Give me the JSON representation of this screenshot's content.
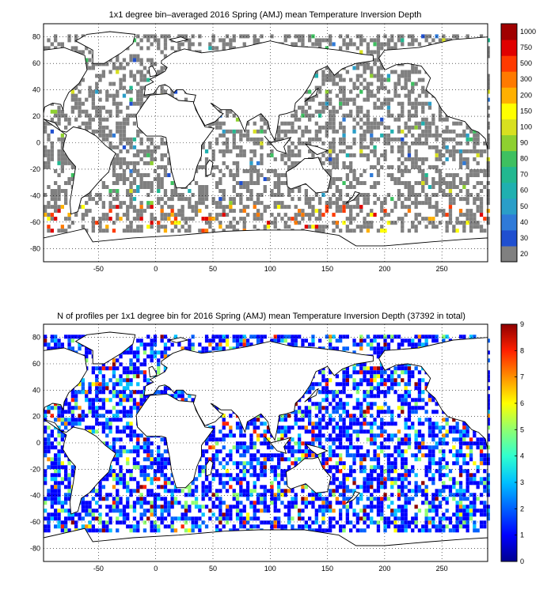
{
  "chart_data": [
    {
      "type": "heatmap",
      "title": "1x1 degree bin–averaged 2016 Spring (AMJ) mean Temperature Inversion Depth",
      "x_ticks": [
        -50,
        0,
        50,
        100,
        150,
        200,
        250
      ],
      "y_ticks": [
        80,
        60,
        40,
        20,
        0,
        -20,
        -40,
        -60,
        -80
      ],
      "xlim": [
        -98,
        290
      ],
      "ylim": [
        -90,
        90
      ],
      "colorbar": {
        "levels": [
          20,
          30,
          40,
          50,
          60,
          70,
          80,
          90,
          100,
          150,
          200,
          300,
          500,
          750,
          1000
        ],
        "colors": [
          "#808080",
          "#1f4fd0",
          "#2f7ad8",
          "#2a9ec8",
          "#1fb0b0",
          "#22b890",
          "#3ec060",
          "#8ed030",
          "#d8e020",
          "#ffff00",
          "#ffb000",
          "#ff7a00",
          "#ff3a00",
          "#e00000",
          "#a00000"
        ]
      }
    },
    {
      "type": "heatmap",
      "title": "N of profiles per 1x1 degree bin for 2016 Spring (AMJ) mean Temperature Inversion Depth  (37392 in total)",
      "x_ticks": [
        -50,
        0,
        50,
        100,
        150,
        200,
        250
      ],
      "y_ticks": [
        80,
        60,
        40,
        20,
        0,
        -20,
        -40,
        -60,
        -80
      ],
      "xlim": [
        -98,
        290
      ],
      "ylim": [
        -90,
        90
      ],
      "total_profiles": 37392,
      "colorbar": {
        "ticks": [
          0,
          1,
          2,
          3,
          4,
          5,
          6,
          7,
          8,
          9
        ],
        "colors": [
          "#00008f",
          "#0000ff",
          "#0060ff",
          "#00c0ff",
          "#30ffcf",
          "#8fff70",
          "#ffff00",
          "#ff9000",
          "#ff2000",
          "#8f0000"
        ]
      }
    }
  ]
}
